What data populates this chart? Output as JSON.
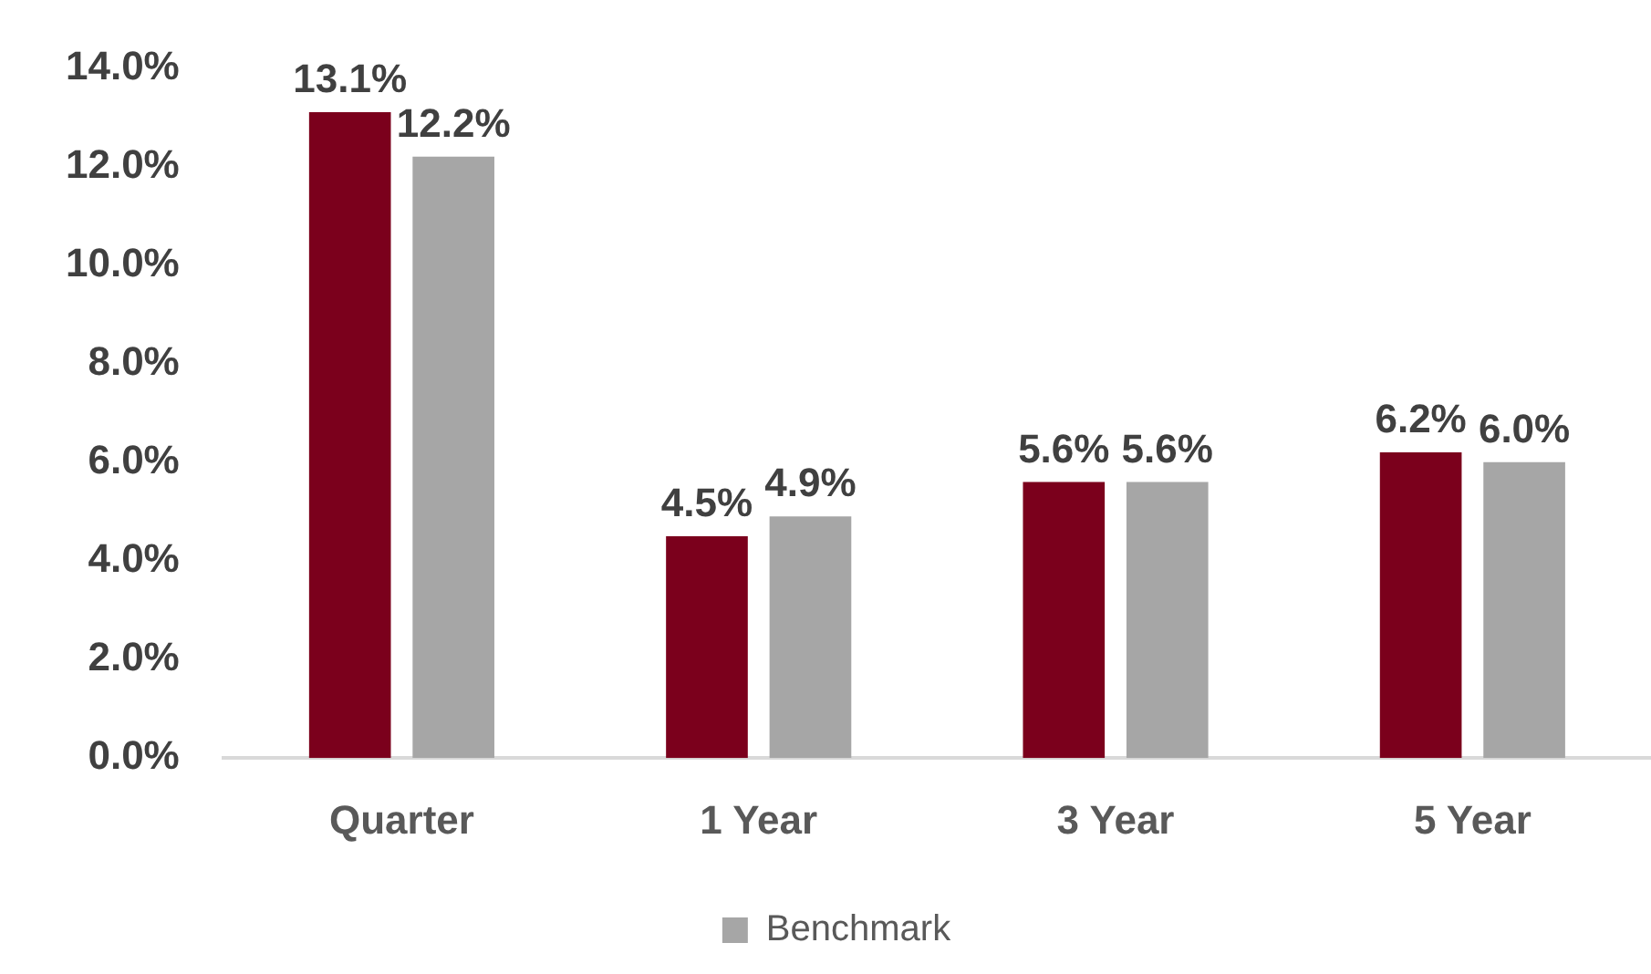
{
  "chart_data": {
    "type": "bar",
    "categories": [
      "Quarter",
      "1 Year",
      "3 Year",
      "5 Year"
    ],
    "series": [
      {
        "color": "#7b001c",
        "values": [
          13.1,
          4.5,
          5.6,
          6.2
        ],
        "value_labels": [
          "13.1%",
          "4.5%",
          "5.6%",
          "6.2%"
        ]
      },
      {
        "name": "Benchmark",
        "color": "#a6a6a6",
        "values": [
          12.2,
          4.9,
          5.6,
          6.0
        ],
        "value_labels": [
          "12.2%",
          "4.9%",
          "5.6%",
          "6.0%"
        ]
      }
    ],
    "ylim": [
      0,
      14
    ],
    "yticks": [
      {
        "value": 0,
        "label": "0.0%"
      },
      {
        "value": 2,
        "label": "2.0%"
      },
      {
        "value": 4,
        "label": "4.0%"
      },
      {
        "value": 6,
        "label": "6.0%"
      },
      {
        "value": 8,
        "label": "8.0%"
      },
      {
        "value": 10,
        "label": "10.0%"
      },
      {
        "value": 12,
        "label": "12.0%"
      },
      {
        "value": 14,
        "label": "14.0%"
      }
    ],
    "grid": false,
    "legend": "bottom"
  }
}
